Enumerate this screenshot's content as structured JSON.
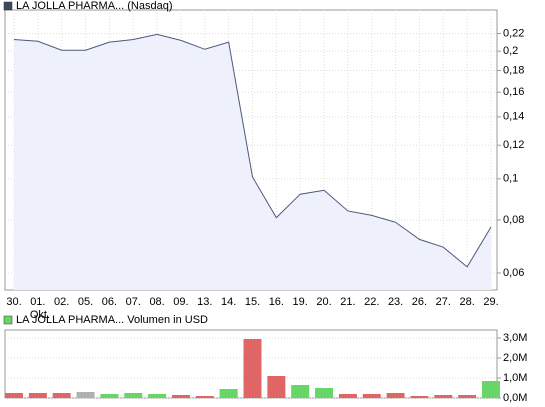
{
  "chart_data": [
    {
      "type": "line",
      "log_scale": true,
      "grid": true,
      "categories": [
        "30.",
        "01.",
        "02.",
        "05.",
        "06.",
        "07.",
        "08.",
        "09.",
        "13.",
        "14.",
        "15.",
        "16.",
        "19.",
        "20.",
        "21.",
        "22.",
        "23.",
        "26.",
        "27.",
        "28.",
        "29."
      ],
      "x_sublabels": [
        null,
        "Okt.",
        null,
        null,
        null,
        null,
        null,
        null,
        null,
        null,
        null,
        null,
        null,
        null,
        null,
        null,
        null,
        null,
        null,
        null,
        null
      ],
      "series": [
        {
          "name": "LA JOLLA PHARMA... (Nasdaq)",
          "color": "#4a5a7a",
          "fill": "#eef0fb",
          "values": [
            0.213,
            0.211,
            0.201,
            0.201,
            0.21,
            0.213,
            0.219,
            0.212,
            0.202,
            0.21,
            0.101,
            0.081,
            0.092,
            0.094,
            0.084,
            0.082,
            0.079,
            0.072,
            0.069,
            0.062,
            0.077
          ]
        }
      ],
      "ylim": [
        0.0547,
        0.25
      ],
      "yticks": [
        {
          "value": 0.06,
          "label": "0,06"
        },
        {
          "value": 0.08,
          "label": "0,08"
        },
        {
          "value": 0.1,
          "label": "0,1"
        },
        {
          "value": 0.12,
          "label": "0,12"
        },
        {
          "value": 0.14,
          "label": "0,14"
        },
        {
          "value": 0.16,
          "label": "0,16"
        },
        {
          "value": 0.18,
          "label": "0,18"
        },
        {
          "value": 0.2,
          "label": "0,2"
        },
        {
          "value": 0.22,
          "label": "0,22"
        }
      ]
    },
    {
      "type": "bar",
      "grid": true,
      "series": [
        {
          "name": "LA JOLLA PHARMA... Volumen in USD",
          "color": "#66d666",
          "values": [
            250000,
            250000,
            250000,
            300000,
            200000,
            250000,
            200000,
            150000,
            100000,
            450000,
            2950000,
            1100000,
            650000,
            500000,
            200000,
            200000,
            250000,
            100000,
            150000,
            150000,
            850000
          ],
          "colors": [
            "#e06666",
            "#e06666",
            "#e06666",
            "#b0b0b0",
            "#66d666",
            "#66d666",
            "#66d666",
            "#e06666",
            "#e06666",
            "#66d666",
            "#e06666",
            "#e06666",
            "#66d666",
            "#66d666",
            "#e06666",
            "#e06666",
            "#e06666",
            "#e06666",
            "#e06666",
            "#e06666",
            "#66d666"
          ]
        }
      ],
      "ylim": [
        0,
        3400000
      ],
      "yticks": [
        {
          "value": 0,
          "label": "0,0M"
        },
        {
          "value": 1000000,
          "label": "1,0M"
        },
        {
          "value": 2000000,
          "label": "2,0M"
        },
        {
          "value": 3000000,
          "label": "3,0M"
        }
      ]
    }
  ]
}
